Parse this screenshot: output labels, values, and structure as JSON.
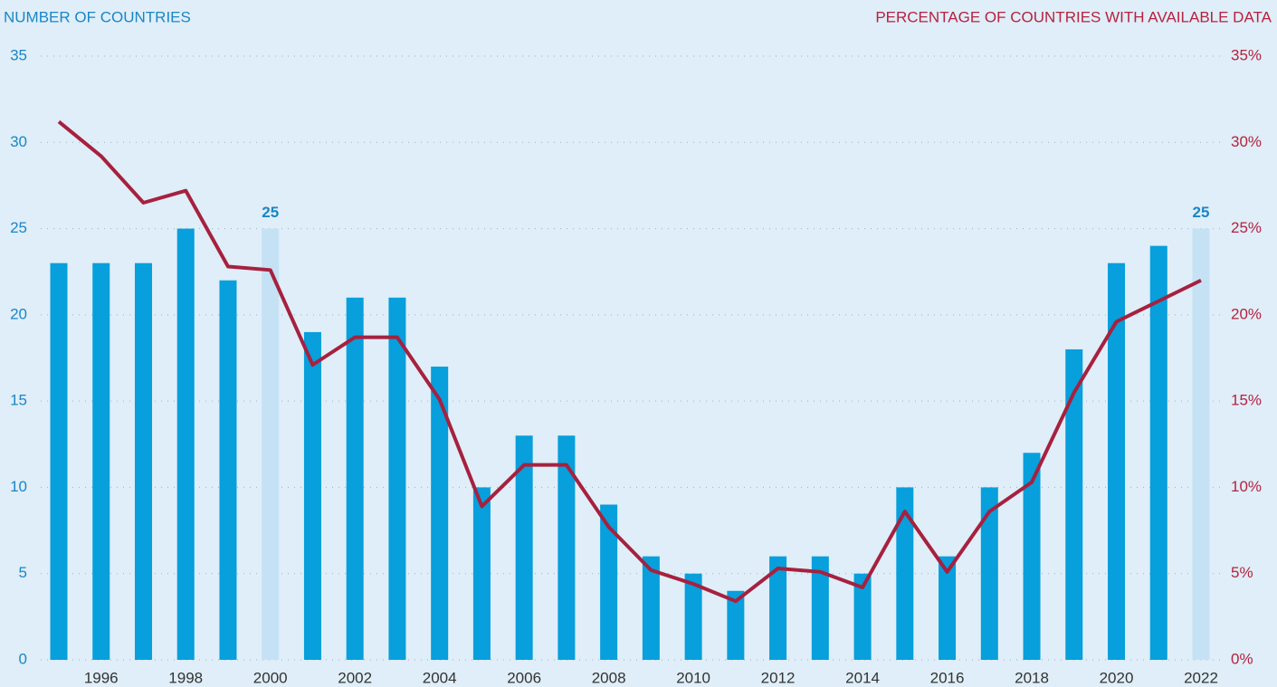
{
  "chart_data": {
    "type": "bar_line",
    "y_label": "NUMBER OF COUNTRIES",
    "y2_label": "PERCENTAGE OF COUNTRIES WITH AVAILABLE DATA",
    "categories": [
      null,
      "1996",
      null,
      "1998",
      null,
      "2000",
      null,
      "2002",
      null,
      "2004",
      null,
      "2006",
      null,
      "2008",
      null,
      "2010",
      null,
      "2012",
      null,
      "2014",
      null,
      "2016",
      null,
      "2018",
      null,
      "2020",
      null,
      "2022"
    ],
    "series": [
      {
        "type": "bar",
        "axis": "y",
        "colors": [
          "#079fdc",
          "#079fdc",
          "#079fdc",
          "#079fdc",
          "#079fdc",
          "#c5e2f5",
          "#079fdc",
          "#079fdc",
          "#079fdc",
          "#079fdc",
          "#079fdc",
          "#079fdc",
          "#079fdc",
          "#079fdc",
          "#079fdc",
          "#079fdc",
          "#079fdc",
          "#079fdc",
          "#079fdc",
          "#079fdc",
          "#079fdc",
          "#079fdc",
          "#079fdc",
          "#079fdc",
          "#079fdc",
          "#079fdc",
          "#079fdc",
          "#c5e2f5"
        ],
        "values": [
          23,
          23,
          23,
          25,
          22,
          25,
          19,
          21,
          21,
          17,
          10,
          13,
          13,
          9,
          6,
          5,
          4,
          6,
          6,
          5,
          10,
          6,
          10,
          12,
          18,
          23,
          24,
          25
        ],
        "value_labels": [
          null,
          null,
          null,
          null,
          null,
          "25",
          null,
          null,
          null,
          null,
          null,
          null,
          null,
          null,
          null,
          null,
          null,
          null,
          null,
          null,
          null,
          null,
          null,
          null,
          null,
          null,
          null,
          "25"
        ]
      },
      {
        "type": "line",
        "axis": "y2",
        "color": "#a6213f",
        "values": [
          31.2,
          29.2,
          26.5,
          27.2,
          22.8,
          22.6,
          17.1,
          18.7,
          18.7,
          15.1,
          8.9,
          11.3,
          11.3,
          7.7,
          5.2,
          4.4,
          3.4,
          5.3,
          5.1,
          4.2,
          8.6,
          5.1,
          8.6,
          10.3,
          15.5,
          19.6,
          20.8,
          22.0
        ]
      }
    ],
    "ylim": [
      0,
      35
    ],
    "yticks": [
      0,
      5,
      10,
      15,
      20,
      25,
      30,
      35
    ],
    "y2lim": [
      0,
      35
    ],
    "y2ticks": [
      {
        "value": 0,
        "label": "0%"
      },
      {
        "value": 5,
        "label": "5%"
      },
      {
        "value": 10,
        "label": "10%"
      },
      {
        "value": 15,
        "label": "15%"
      },
      {
        "value": 20,
        "label": "20%"
      },
      {
        "value": 25,
        "label": "25%"
      },
      {
        "value": 30,
        "label": "30%"
      },
      {
        "value": 35,
        "label": "35%"
      }
    ],
    "grid": true
  }
}
